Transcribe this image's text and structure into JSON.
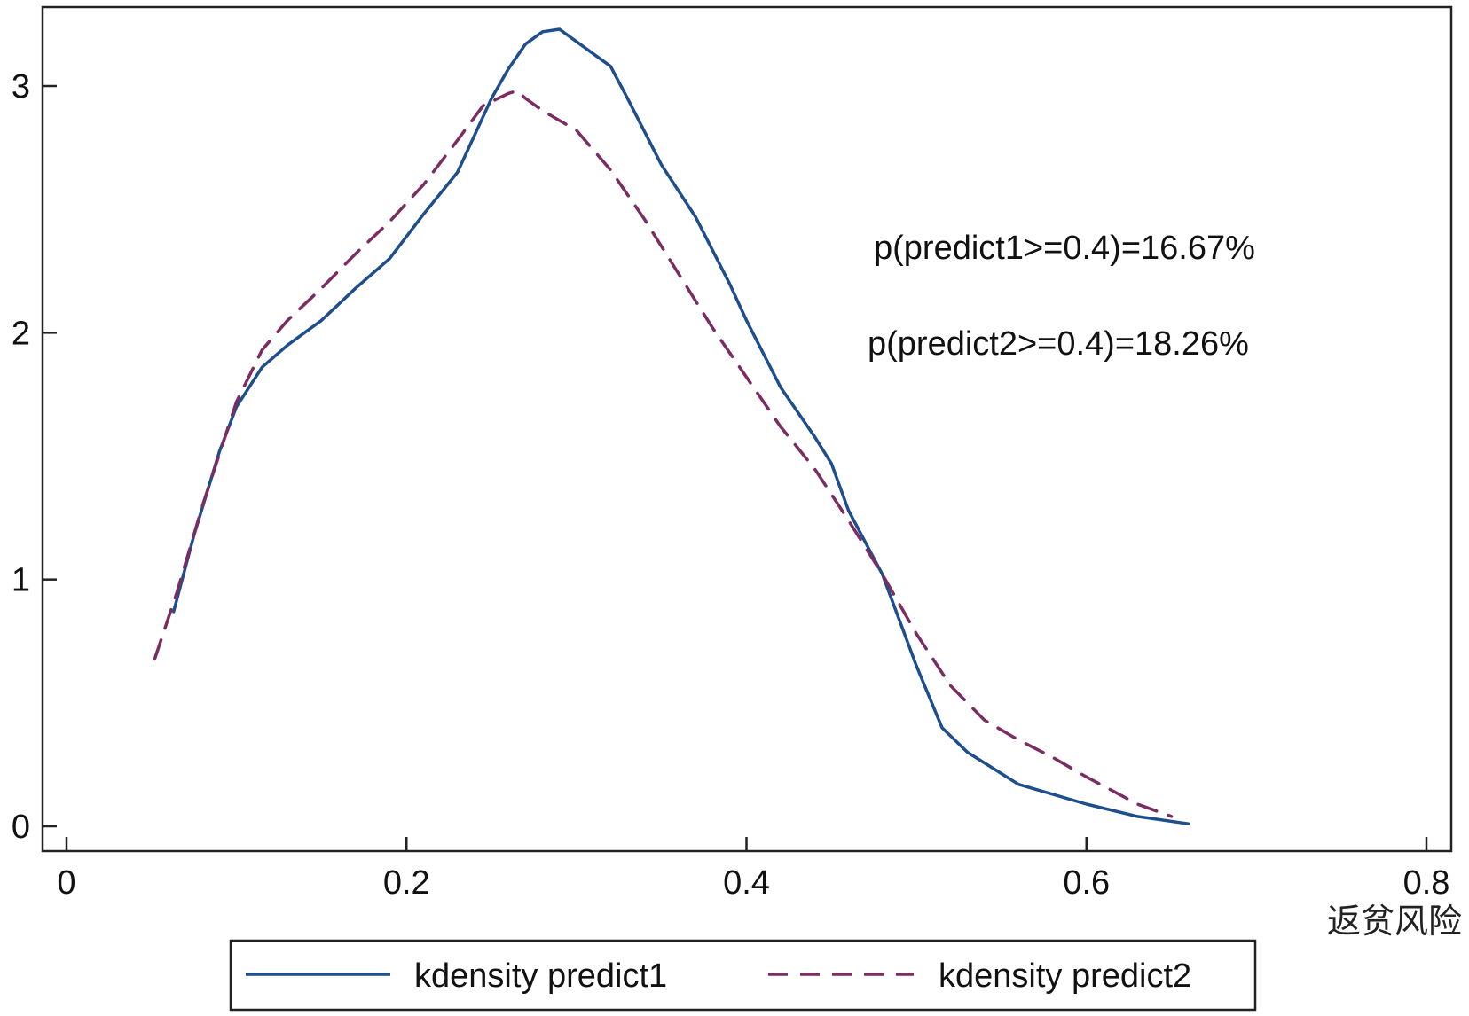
{
  "chart_data": {
    "type": "line",
    "title": "",
    "xlabel": "返贫风险",
    "ylabel": "",
    "xlim": [
      0,
      0.8
    ],
    "ylim": [
      0,
      3.3
    ],
    "xticks": [
      "0",
      "0.2",
      "0.4",
      "0.6",
      "0.8"
    ],
    "yticks": [
      "0",
      "1",
      "2",
      "3"
    ],
    "grid": false,
    "legend_position": "bottom",
    "annotations": [
      "p(predict1>=0.4)=16.67%",
      "p(predict2>=0.4)=18.26%"
    ],
    "series": [
      {
        "name": "kdensity predict1",
        "color": "#1f4e8c",
        "style": "solid",
        "x": [
          0.063,
          0.075,
          0.09,
          0.1,
          0.115,
          0.13,
          0.15,
          0.17,
          0.19,
          0.21,
          0.23,
          0.25,
          0.26,
          0.27,
          0.28,
          0.29,
          0.3,
          0.31,
          0.32,
          0.33,
          0.35,
          0.37,
          0.39,
          0.4,
          0.42,
          0.44,
          0.45,
          0.46,
          0.48,
          0.5,
          0.515,
          0.53,
          0.56,
          0.6,
          0.63,
          0.66
        ],
        "y": [
          0.87,
          1.18,
          1.52,
          1.7,
          1.86,
          1.95,
          2.05,
          2.18,
          2.3,
          2.48,
          2.65,
          2.95,
          3.07,
          3.17,
          3.22,
          3.23,
          3.18,
          3.13,
          3.08,
          2.95,
          2.68,
          2.47,
          2.2,
          2.05,
          1.78,
          1.58,
          1.47,
          1.28,
          1.02,
          0.65,
          0.4,
          0.3,
          0.17,
          0.09,
          0.04,
          0.01
        ]
      },
      {
        "name": "kdensity predict2",
        "color": "#7b2d63",
        "style": "dashed",
        "x": [
          0.052,
          0.065,
          0.08,
          0.1,
          0.115,
          0.13,
          0.15,
          0.17,
          0.19,
          0.21,
          0.23,
          0.245,
          0.26,
          0.265,
          0.27,
          0.28,
          0.3,
          0.32,
          0.34,
          0.36,
          0.38,
          0.4,
          0.42,
          0.44,
          0.46,
          0.48,
          0.5,
          0.52,
          0.54,
          0.56,
          0.58,
          0.6,
          0.63,
          0.65
        ],
        "y": [
          0.68,
          0.95,
          1.3,
          1.72,
          1.93,
          2.05,
          2.18,
          2.32,
          2.45,
          2.6,
          2.78,
          2.92,
          2.97,
          2.98,
          2.95,
          2.9,
          2.82,
          2.66,
          2.46,
          2.24,
          2.02,
          1.82,
          1.62,
          1.45,
          1.24,
          1.02,
          0.78,
          0.57,
          0.43,
          0.35,
          0.28,
          0.2,
          0.09,
          0.04
        ]
      }
    ]
  }
}
